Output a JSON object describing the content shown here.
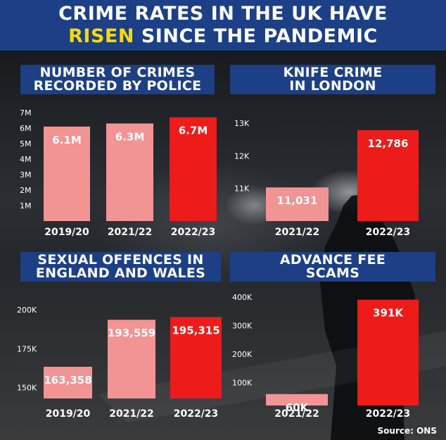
{
  "headline": {
    "line1": "CRIME RATES IN THE UK HAVE",
    "line2_accent": "RISEN",
    "line2_rest": " SINCE THE PANDEMIC",
    "accent_color": "#f5d90a",
    "background_color": "#1c3f86"
  },
  "source": "Source: ONS",
  "colors": {
    "bar_light": "#f29494",
    "bar_bright": "#ee1b1b",
    "title_bar": "#1c3f86"
  },
  "chart_data": [
    {
      "id": "crimes",
      "type": "bar",
      "title_lines": [
        "NUMBER OF CRIMES",
        "RECORDED BY POLICE"
      ],
      "categories": [
        "2019/20",
        "2021/22",
        "2022/23"
      ],
      "values": [
        6.1,
        6.3,
        6.7
      ],
      "value_labels": [
        "6.1M",
        "6.3M",
        "6.7M"
      ],
      "bar_colors": [
        "light",
        "light",
        "bright"
      ],
      "ylim": [
        0,
        7
      ],
      "yticks": [
        1,
        2,
        3,
        4,
        5,
        6,
        7
      ],
      "ytick_labels": [
        "1M",
        "2M",
        "3M",
        "4M",
        "5M",
        "6M",
        "7M"
      ],
      "grid": false
    },
    {
      "id": "knife",
      "type": "bar",
      "title_lines": [
        "KNIFE CRIME",
        "IN LONDON"
      ],
      "categories": [
        "2021/22",
        "2022/23"
      ],
      "values": [
        11031,
        12786
      ],
      "value_labels": [
        "11,031",
        "12,786"
      ],
      "bar_colors": [
        "light",
        "bright"
      ],
      "ylim": [
        10000,
        13000
      ],
      "yticks": [
        11000,
        12000,
        13000
      ],
      "ytick_labels": [
        "11K",
        "12K",
        "13K"
      ],
      "grid": false
    },
    {
      "id": "sexual",
      "type": "bar",
      "title_lines": [
        "SEXUAL OFFENCES IN",
        "ENGLAND AND WALES"
      ],
      "categories": [
        "2019/20",
        "2021/22",
        "2022/23"
      ],
      "values": [
        163358,
        193559,
        195315
      ],
      "value_labels": [
        "163,358",
        "193,559",
        "195,315"
      ],
      "bar_colors": [
        "light",
        "light",
        "bright"
      ],
      "ylim": [
        143000,
        201000
      ],
      "yticks": [
        150000,
        175000,
        200000
      ],
      "ytick_labels": [
        "150K",
        "175K",
        "200K"
      ],
      "grid": false
    },
    {
      "id": "fee",
      "type": "bar",
      "title_lines": [
        "ADVANCE FEE",
        "SCAMS"
      ],
      "categories": [
        "2021/22",
        "2022/23"
      ],
      "values": [
        60000,
        391000
      ],
      "value_labels": [
        "60K",
        "391K"
      ],
      "bar_colors": [
        "light",
        "bright"
      ],
      "ylim": [
        20000,
        420000
      ],
      "yticks": [
        100000,
        200000,
        300000,
        400000
      ],
      "ytick_labels": [
        "100K",
        "200K",
        "300K",
        "400K"
      ],
      "grid": false
    }
  ]
}
